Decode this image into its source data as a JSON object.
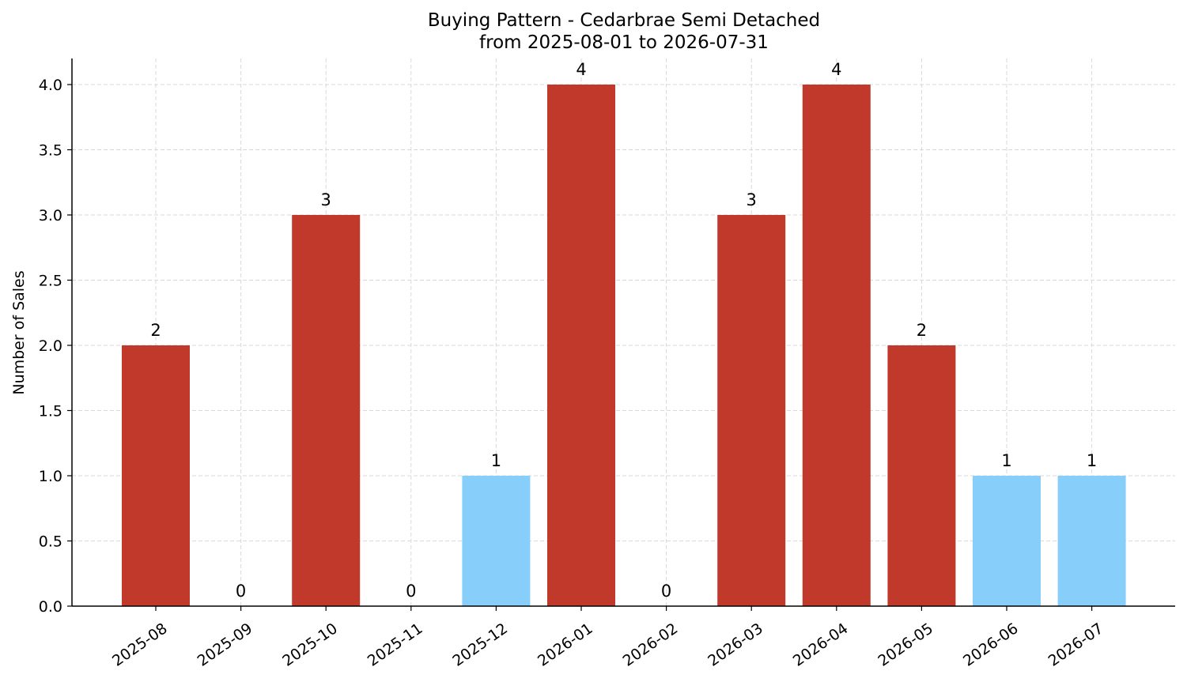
{
  "chart_data": {
    "type": "bar",
    "title_line1": "Buying Pattern - Cedarbrae Semi Detached",
    "title_line2": "from 2025-08-01 to 2026-07-31",
    "xlabel": "",
    "ylabel": "Number of Sales",
    "categories": [
      "2025-08",
      "2025-09",
      "2025-10",
      "2025-11",
      "2025-12",
      "2026-01",
      "2026-02",
      "2026-03",
      "2026-04",
      "2026-05",
      "2026-06",
      "2026-07"
    ],
    "values": [
      2,
      0,
      3,
      0,
      1,
      4,
      0,
      3,
      4,
      2,
      1,
      1
    ],
    "ylim": [
      0,
      4.2
    ],
    "yticks": [
      "0.0",
      "0.5",
      "1.0",
      "1.5",
      "2.0",
      "2.5",
      "3.0",
      "3.5",
      "4.0"
    ],
    "grid": true,
    "colors": {
      "high": "#c0392b",
      "low": "#87cefa"
    },
    "bar_colors": [
      "high",
      "high",
      "high",
      "high",
      "low",
      "high",
      "high",
      "high",
      "high",
      "high",
      "low",
      "low"
    ]
  }
}
